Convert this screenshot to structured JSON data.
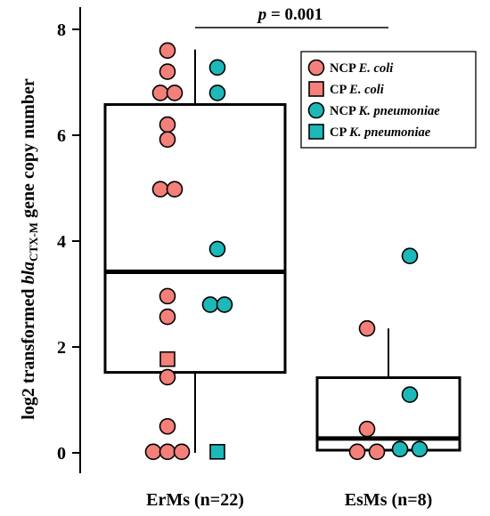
{
  "chart_data": {
    "type": "box",
    "ylabel_parts": [
      "log2 transformed ",
      "bla",
      "CTX-M",
      " gene copy number"
    ],
    "ylim": [
      -0.2,
      8.4
    ],
    "yticks": [
      "0",
      "2",
      "4",
      "6",
      "8"
    ],
    "categories": [
      "ErMs (n=22)",
      "EsMs (n=8)"
    ],
    "boxes": [
      {
        "category": "ErMs (n=22)",
        "whisker_low": 0.0,
        "q1": 1.52,
        "median": 3.42,
        "q3": 6.58,
        "whisker_high": 7.62
      },
      {
        "category": "EsMs (n=8)",
        "whisker_low": 0.05,
        "q1": 0.05,
        "median": 0.27,
        "q3": 1.42,
        "whisker_high": 2.35
      }
    ],
    "colors": {
      "ecoli": "#f4807a",
      "kpneu": "#1db8b8"
    },
    "series": [
      {
        "name_parts": [
          "NCP ",
          "E. coli"
        ],
        "color_key": "ecoli",
        "marker": "circle",
        "points": [
          {
            "group": 0,
            "y": 7.6,
            "jitter": 0
          },
          {
            "group": 0,
            "y": 7.2,
            "jitter": 0
          },
          {
            "group": 0,
            "y": 6.8,
            "jitter": -0.5
          },
          {
            "group": 0,
            "y": 6.8,
            "jitter": 0.5
          },
          {
            "group": 0,
            "y": 6.2,
            "jitter": 0
          },
          {
            "group": 0,
            "y": 5.92,
            "jitter": 0
          },
          {
            "group": 0,
            "y": 4.98,
            "jitter": -0.5
          },
          {
            "group": 0,
            "y": 4.98,
            "jitter": 0.5
          },
          {
            "group": 0,
            "y": 2.96,
            "jitter": 0
          },
          {
            "group": 0,
            "y": 2.57,
            "jitter": 0
          },
          {
            "group": 0,
            "y": 1.43,
            "jitter": 0
          },
          {
            "group": 0,
            "y": 0.5,
            "jitter": 0
          },
          {
            "group": 0,
            "y": 0.02,
            "jitter": -1
          },
          {
            "group": 0,
            "y": 0.02,
            "jitter": 0
          },
          {
            "group": 0,
            "y": 0.02,
            "jitter": 1
          },
          {
            "group": 1,
            "y": 2.35,
            "jitter": 0
          },
          {
            "group": 1,
            "y": 0.45,
            "jitter": 0
          },
          {
            "group": 1,
            "y": 0.02,
            "jitter": -0.5
          },
          {
            "group": 1,
            "y": 0.02,
            "jitter": 0.5
          }
        ]
      },
      {
        "name_parts": [
          "CP ",
          "E. coli"
        ],
        "color_key": "ecoli",
        "marker": "square",
        "points": [
          {
            "group": 0,
            "y": 1.77,
            "jitter": 0
          }
        ]
      },
      {
        "name_parts": [
          "NCP ",
          "K. pneumoniae"
        ],
        "color_key": "kpneu",
        "marker": "circle",
        "points": [
          {
            "group": 0,
            "y": 7.28,
            "jitter": 0
          },
          {
            "group": 0,
            "y": 6.8,
            "jitter": 0
          },
          {
            "group": 0,
            "y": 3.85,
            "jitter": 0
          },
          {
            "group": 0,
            "y": 2.8,
            "jitter": -0.5
          },
          {
            "group": 0,
            "y": 2.8,
            "jitter": 0.5
          },
          {
            "group": 1,
            "y": 3.72,
            "jitter": 0
          },
          {
            "group": 1,
            "y": 1.1,
            "jitter": 0
          },
          {
            "group": 1,
            "y": 0.07,
            "jitter": -0.5
          },
          {
            "group": 1,
            "y": 0.07,
            "jitter": 0.5
          }
        ]
      },
      {
        "name_parts": [
          "CP ",
          "K. pneumoniae"
        ],
        "color_key": "kpneu",
        "marker": "square",
        "points": [
          {
            "group": 0,
            "y": 0.02,
            "jitter": 0
          }
        ]
      }
    ],
    "significance": {
      "label_parts": [
        "p",
        " = 0.001"
      ]
    },
    "legend_position": "top-right",
    "grid": false
  }
}
